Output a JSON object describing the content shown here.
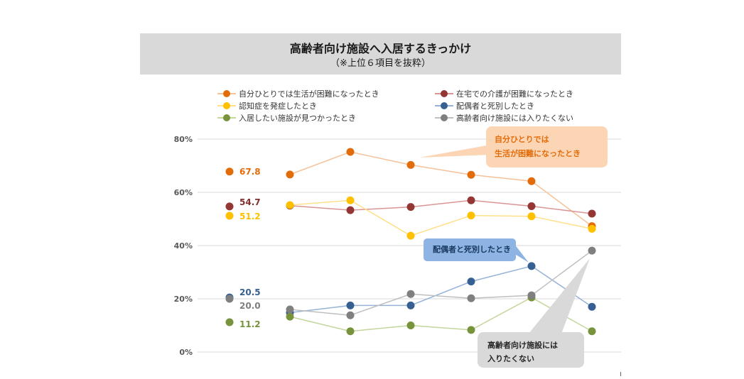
{
  "header": {
    "title": "高齢者向け施設へ入居するきっかけ",
    "subtitle": "（※上位６項目を抜粋）"
  },
  "chart_data": {
    "type": "line",
    "title": "高齢者向け施設へ入居するきっかけ",
    "subtitle": "（※上位６項目を抜粋）",
    "y_ticks": [
      "80%",
      "60%",
      "40%",
      "20%",
      "0%"
    ],
    "ylim": [
      0,
      80
    ],
    "grid": true,
    "legend_position": "top",
    "points_per_series": 6,
    "series": [
      {
        "name": "自分ひとりでは生活が困難になったとき",
        "color": "#e36c0a",
        "line_color": "#f6c29a",
        "label_color": "#e36c0a",
        "start_label": "67.8",
        "start_value": 67.8,
        "values": [
          66.7,
          75.2,
          70.3,
          66.6,
          64.2,
          47.3
        ]
      },
      {
        "name": "在宅での介護が困難になったとき",
        "color": "#943634",
        "line_color": "#d99594",
        "label_color": "#7f2f2d",
        "start_label": "54.7",
        "start_value": 54.7,
        "values": [
          55.0,
          53.3,
          54.5,
          57.0,
          54.8,
          52.0
        ]
      },
      {
        "name": "認知症を発症したとき",
        "color": "#ffc000",
        "line_color": "#ffe08a",
        "label_color": "#ffc000",
        "start_label": "51.2",
        "start_value": 51.2,
        "values": [
          55.2,
          57.0,
          43.7,
          51.3,
          51.0,
          46.3
        ]
      },
      {
        "name": "配偶者と死別したとき",
        "color": "#366092",
        "line_color": "#95b3d7",
        "label_color": "#366092",
        "start_label": "20.5",
        "start_value": 20.5,
        "values": [
          14.8,
          17.5,
          17.5,
          26.5,
          32.3,
          17.0
        ]
      },
      {
        "name": "入居したい施設が見つかったとき",
        "color": "#77933c",
        "line_color": "#c3d69b",
        "label_color": "#77933c",
        "start_label": "11.2",
        "start_value": 11.2,
        "values": [
          13.3,
          7.8,
          10.0,
          8.3,
          20.5,
          7.8
        ]
      },
      {
        "name": "高齢者向け施設には入りたくない",
        "color": "#7f7f7f",
        "line_color": "#bfbfbf",
        "label_color": "#7f7f7f",
        "start_label": "20.0",
        "start_value": 20.0,
        "values": [
          16.0,
          13.8,
          21.8,
          20.2,
          21.3,
          38.1
        ]
      }
    ]
  },
  "callouts": {
    "self_living": {
      "line1": "自分ひとりでは",
      "line2": "生活が困難になったとき"
    },
    "spouse": {
      "text": "配偶者と死別したとき"
    },
    "no_facility": {
      "line1": "高齢者向け施設には",
      "line2": "入りたくない"
    }
  },
  "colors": {
    "title_bg": "#d9d9d9",
    "callout_orange_bg": "#fcd5b5",
    "callout_orange_text": "#e36c0a",
    "callout_blue_bg": "#8db4e2",
    "callout_blue_text": "#17375e",
    "callout_gray_bg": "#d9d9d9"
  }
}
